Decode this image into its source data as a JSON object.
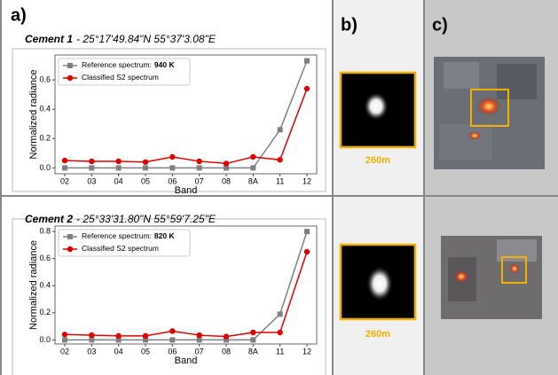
{
  "panel_labels": [
    "a)",
    "b)",
    "c)"
  ],
  "scale_labels": [
    "260m",
    "260m"
  ],
  "chart_data": [
    {
      "type": "line",
      "title": "Cement 1",
      "subtitle": "- 25°17'49.84\"N 55°37'3.08\"E",
      "xlabel": "Band",
      "ylabel": "Normalized radiance",
      "categories": [
        "02",
        "03",
        "04",
        "05",
        "06",
        "07",
        "08",
        "8A",
        "11",
        "12"
      ],
      "ylim": [
        -0.04,
        0.77
      ],
      "yticks": [
        {
          "value": 0,
          "label": "0.0"
        },
        0.2,
        0.4,
        0.6
      ],
      "series": [
        {
          "name": "Reference spectrum:",
          "temperature": "940 K",
          "color": "#808080",
          "marker": "square",
          "values": [
            0,
            0,
            0,
            0,
            0,
            0,
            0,
            0,
            0.26,
            0.73
          ]
        },
        {
          "name": "Classified S2 spectrum",
          "color": "#e00000",
          "marker": "circle",
          "values": [
            0.05,
            0.045,
            0.045,
            0.04,
            0.075,
            0.045,
            0.03,
            0.075,
            0.055,
            0.54
          ]
        }
      ]
    },
    {
      "type": "line",
      "title": "Cement 2",
      "subtitle": "- 25°33'31.80\"N 55°59'7.25\"E",
      "xlabel": "Band",
      "ylabel": "Normalized radiance",
      "categories": [
        "02",
        "03",
        "04",
        "05",
        "06",
        "07",
        "08",
        "8A",
        "11",
        "12"
      ],
      "ylim": [
        -0.03,
        0.84
      ],
      "yticks": [
        {
          "value": 0,
          "label": "0.0"
        },
        0.2,
        0.4,
        0.6,
        0.8
      ],
      "series": [
        {
          "name": "Reference spectrum:",
          "temperature": "820 K",
          "color": "#808080",
          "marker": "square",
          "values": [
            0,
            0,
            0,
            0,
            0,
            0,
            0,
            0,
            0.19,
            0.8
          ]
        },
        {
          "name": "Classified S2 spectrum",
          "color": "#e00000",
          "marker": "circle",
          "values": [
            0.04,
            0.035,
            0.03,
            0.03,
            0.065,
            0.035,
            0.025,
            0.055,
            0.055,
            0.65
          ]
        }
      ]
    }
  ]
}
